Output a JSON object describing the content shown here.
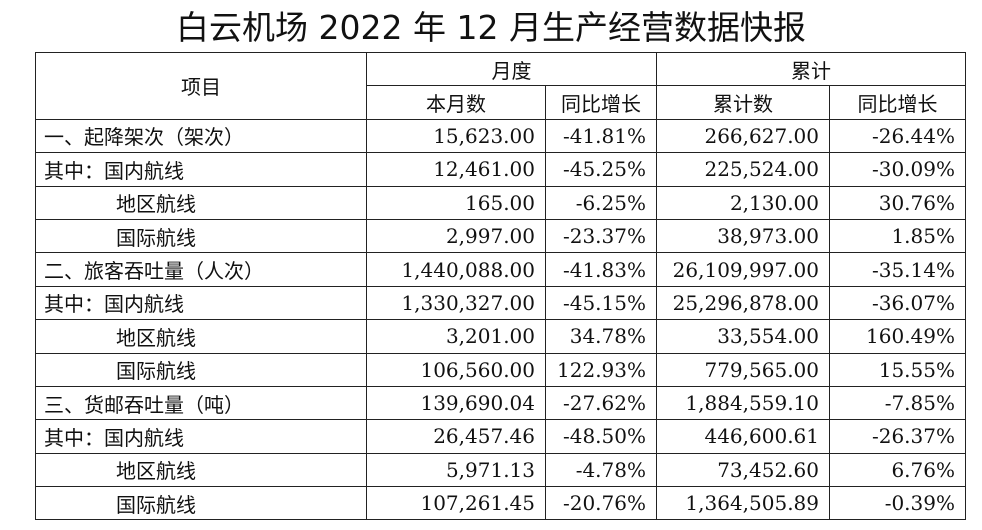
{
  "title": "白云机场 2022 年 12 月生产经营数据快报",
  "header": {
    "item": "项目",
    "month_group": "月度",
    "cumulative_group": "累计",
    "month_value": "本月数",
    "month_yoy": "同比增长",
    "cum_value": "累计数",
    "cum_yoy": "同比增长"
  },
  "rows": [
    {
      "label": "一、起降架次（架次）",
      "month": "15,623.00",
      "month_yoy": "-41.81%",
      "cum": "266,627.00",
      "cum_yoy": "-26.44%"
    },
    {
      "label": "其中：国内航线",
      "month": "12,461.00",
      "month_yoy": "-45.25%",
      "cum": "225,524.00",
      "cum_yoy": "-30.09%"
    },
    {
      "label": "地区航线",
      "month": "165.00",
      "month_yoy": "-6.25%",
      "cum": "2,130.00",
      "cum_yoy": "30.76%"
    },
    {
      "label": "国际航线",
      "month": "2,997.00",
      "month_yoy": "-23.37%",
      "cum": "38,973.00",
      "cum_yoy": "1.85%"
    },
    {
      "label": "二、旅客吞吐量（人次）",
      "month": "1,440,088.00",
      "month_yoy": "-41.83%",
      "cum": "26,109,997.00",
      "cum_yoy": "-35.14%"
    },
    {
      "label": "其中：国内航线",
      "month": "1,330,327.00",
      "month_yoy": "-45.15%",
      "cum": "25,296,878.00",
      "cum_yoy": "-36.07%"
    },
    {
      "label": "地区航线",
      "month": "3,201.00",
      "month_yoy": "34.78%",
      "cum": "33,554.00",
      "cum_yoy": "160.49%"
    },
    {
      "label": "国际航线",
      "month": "106,560.00",
      "month_yoy": "122.93%",
      "cum": "779,565.00",
      "cum_yoy": "15.55%"
    },
    {
      "label": "三、货邮吞吐量（吨）",
      "month": "139,690.04",
      "month_yoy": "-27.62%",
      "cum": "1,884,559.10",
      "cum_yoy": "-7.85%"
    },
    {
      "label": "其中：国内航线",
      "month": "26,457.46",
      "month_yoy": "-48.50%",
      "cum": "446,600.61",
      "cum_yoy": "-26.37%"
    },
    {
      "label": "地区航线",
      "month": "5,971.13",
      "month_yoy": "-4.78%",
      "cum": "73,452.60",
      "cum_yoy": "6.76%"
    },
    {
      "label": "国际航线",
      "month": "107,261.45",
      "month_yoy": "-20.76%",
      "cum": "1,364,505.89",
      "cum_yoy": "-0.39%"
    }
  ]
}
